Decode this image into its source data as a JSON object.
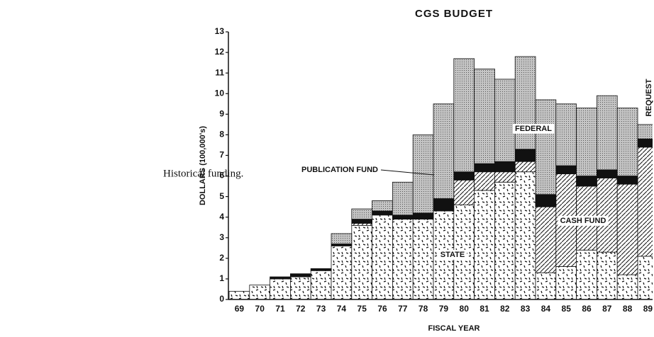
{
  "caption": "Historical funding.",
  "chart_data": {
    "type": "stacked-step",
    "title": "CGS BUDGET",
    "x_label": "FISCAL YEAR",
    "y_label": "DOLLARS (100,000's)",
    "categories": [
      "69",
      "70",
      "71",
      "72",
      "73",
      "74",
      "75",
      "76",
      "77",
      "78",
      "79",
      "80",
      "81",
      "82",
      "83",
      "84",
      "85",
      "86",
      "87",
      "88",
      "89"
    ],
    "series": [
      {
        "name": "STATE",
        "color": "#ffffff",
        "pattern": "dashes",
        "values": [
          0.4,
          0.7,
          1.0,
          1.1,
          1.4,
          2.6,
          3.6,
          4.1,
          3.9,
          3.9,
          4.3,
          4.6,
          5.3,
          5.7,
          6.2,
          1.3,
          1.6,
          2.4,
          2.3,
          1.2,
          2.1
        ]
      },
      {
        "name": "CASH FUND",
        "color": "#ffffff",
        "pattern": "hatch",
        "values": [
          0,
          0,
          0,
          0,
          0,
          0,
          0.1,
          0,
          0,
          0,
          0,
          1.2,
          0.9,
          0.5,
          0.5,
          3.2,
          4.5,
          3.1,
          3.6,
          4.4,
          5.3
        ]
      },
      {
        "name": "PUBLICATION FUND",
        "color": "#111111",
        "pattern": "solid",
        "values": [
          0,
          0,
          0.1,
          0.15,
          0.1,
          0.1,
          0.2,
          0.2,
          0.2,
          0.3,
          0.6,
          0.4,
          0.4,
          0.5,
          0.6,
          0.6,
          0.4,
          0.5,
          0.4,
          0.4,
          0.4
        ]
      },
      {
        "name": "FEDERAL",
        "color": "#b8b8b8",
        "pattern": "dots",
        "values": [
          0,
          0,
          0,
          0,
          0,
          0.5,
          0.5,
          0.5,
          1.6,
          3.8,
          4.6,
          5.5,
          4.6,
          4.0,
          4.5,
          4.6,
          3.0,
          3.3,
          3.6,
          3.3,
          0.7
        ]
      }
    ],
    "annotations": [
      "REQUEST"
    ],
    "ylim": [
      0,
      13
    ],
    "yticks": [
      0,
      1,
      2,
      3,
      4,
      5,
      6,
      7,
      8,
      9,
      10,
      11,
      12,
      13
    ]
  }
}
